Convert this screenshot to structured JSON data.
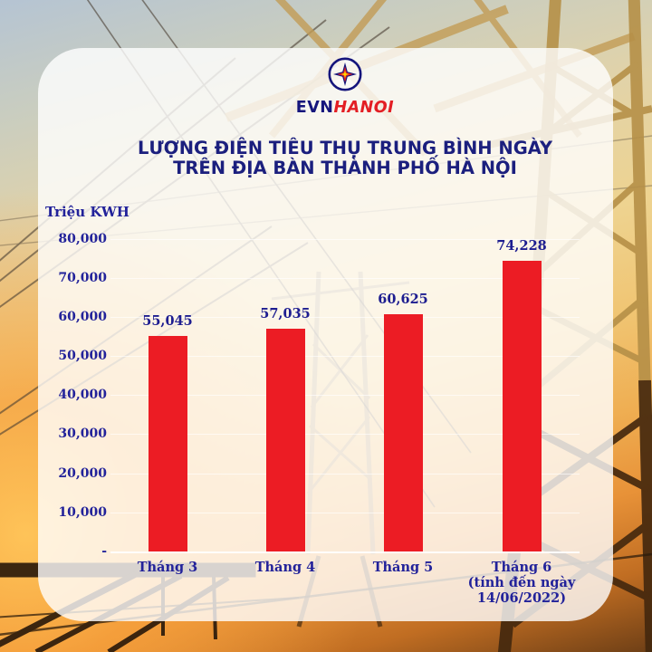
{
  "brand": {
    "evn_text": "EVN",
    "hanoi_text": "HANOI",
    "logo_icon": "evn-star-logo"
  },
  "title_lines": [
    "LƯỢNG ĐIỆN TIÊU THỤ TRUNG BÌNH NGÀY",
    "TRÊN ĐỊA BÀN THÀNH PHỐ HÀ NỘI"
  ],
  "chart_data": {
    "type": "bar",
    "title": "LƯỢNG ĐIỆN TIÊU THỤ TRUNG BÌNH NGÀY TRÊN ĐỊA BÀN THÀNH PHỐ HÀ NỘI",
    "xlabel": "",
    "ylabel": "Triệu KWH",
    "ylim": [
      0,
      80000
    ],
    "grid": true,
    "bar_color": "#ec1c24",
    "categories": [
      [
        "Tháng 3"
      ],
      [
        "Tháng 4"
      ],
      [
        "Tháng 5"
      ],
      [
        "Tháng  6",
        "(tính đến ngày",
        "14/06/2022)"
      ]
    ],
    "values": [
      55045,
      57035,
      60625,
      74228
    ],
    "value_labels": [
      "55,045",
      "57,035",
      "60,625",
      "74,228"
    ],
    "y_ticks": [
      {
        "value": 80000,
        "label": "80,000"
      },
      {
        "value": 70000,
        "label": "70,000"
      },
      {
        "value": 60000,
        "label": "60,000"
      },
      {
        "value": 50000,
        "label": "50,000"
      },
      {
        "value": 40000,
        "label": "40,000"
      },
      {
        "value": 30000,
        "label": "30,000"
      },
      {
        "value": 20000,
        "label": "20,000"
      },
      {
        "value": 10000,
        "label": "10,000"
      },
      {
        "value": 0,
        "label": "-"
      }
    ]
  },
  "colors": {
    "bar_red": "#ec1c24",
    "title_navy": "#1b1f7e",
    "label_navy": "#22229a",
    "hanoi_red": "#e31e24"
  }
}
